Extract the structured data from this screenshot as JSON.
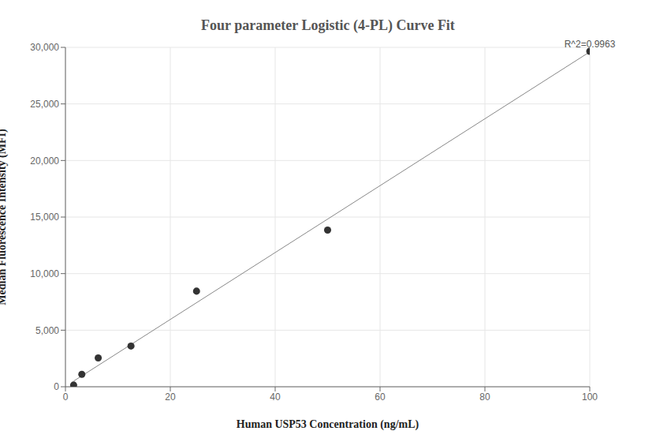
{
  "chart_data": {
    "type": "scatter",
    "title": "Four parameter Logistic (4-PL) Curve Fit",
    "x_label": "Human USP53 Concentration (ng/mL)",
    "y_label": "Median Fluorescence Intensity (MFI)",
    "annotation": "R^2=0.9963",
    "x": [
      1.5625,
      3.125,
      6.25,
      12.5,
      25,
      50,
      100
    ],
    "values": [
      150,
      1100,
      2550,
      3600,
      8450,
      13850,
      29650
    ],
    "color": "#333333",
    "marker": "circle",
    "fit": {
      "x": [
        1.5625,
        100
      ],
      "values": [
        500,
        29600
      ],
      "color": "#888888",
      "line_style": "solid"
    },
    "xlim": [
      0,
      100
    ],
    "xticks": [
      0,
      20,
      40,
      60,
      80,
      100
    ],
    "ylim": [
      0,
      30000
    ],
    "yticks": [
      {
        "value": 0,
        "label": "0"
      },
      {
        "value": 5000,
        "label": "5,000"
      },
      {
        "value": 10000,
        "label": "10,000"
      },
      {
        "value": 15000,
        "label": "15,000"
      },
      {
        "value": 20000,
        "label": "20,000"
      },
      {
        "value": 25000,
        "label": "25,000"
      },
      {
        "value": 30000,
        "label": "30,000"
      }
    ],
    "grid": true
  }
}
